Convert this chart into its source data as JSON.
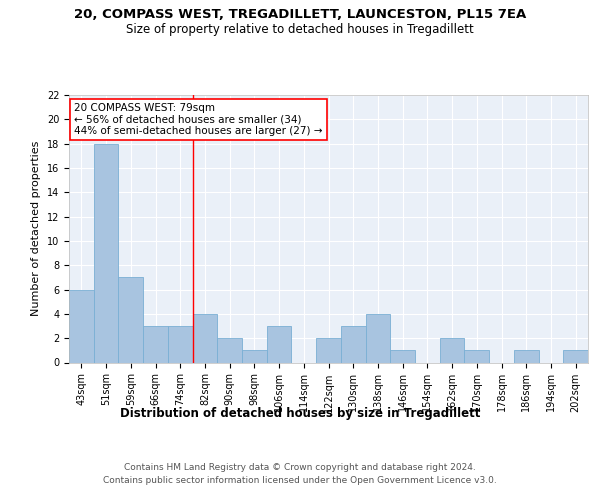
{
  "title": "20, COMPASS WEST, TREGADILLETT, LAUNCESTON, PL15 7EA",
  "subtitle": "Size of property relative to detached houses in Tregadillett",
  "xlabel": "Distribution of detached houses by size in Tregadillett",
  "ylabel": "Number of detached properties",
  "bins": [
    "43sqm",
    "51sqm",
    "59sqm",
    "66sqm",
    "74sqm",
    "82sqm",
    "90sqm",
    "98sqm",
    "106sqm",
    "114sqm",
    "122sqm",
    "130sqm",
    "138sqm",
    "146sqm",
    "154sqm",
    "162sqm",
    "170sqm",
    "178sqm",
    "186sqm",
    "194sqm",
    "202sqm"
  ],
  "values": [
    6,
    18,
    7,
    3,
    3,
    4,
    2,
    1,
    3,
    0,
    2,
    3,
    4,
    1,
    0,
    2,
    1,
    0,
    1,
    0,
    1
  ],
  "bar_color": "#a8c4e0",
  "bar_edge_color": "#7aafd4",
  "bg_color": "#eaf0f8",
  "annotation_text": "20 COMPASS WEST: 79sqm\n← 56% of detached houses are smaller (34)\n44% of semi-detached houses are larger (27) →",
  "annotation_box_color": "white",
  "annotation_box_edgecolor": "red",
  "vline_x_index": 4.5,
  "vline_color": "red",
  "ylim": [
    0,
    22
  ],
  "yticks": [
    0,
    2,
    4,
    6,
    8,
    10,
    12,
    14,
    16,
    18,
    20,
    22
  ],
  "footer_line1": "Contains HM Land Registry data © Crown copyright and database right 2024.",
  "footer_line2": "Contains public sector information licensed under the Open Government Licence v3.0.",
  "title_fontsize": 9.5,
  "subtitle_fontsize": 8.5,
  "xlabel_fontsize": 8.5,
  "ylabel_fontsize": 8,
  "annotation_fontsize": 7.5,
  "footer_fontsize": 6.5,
  "tick_fontsize": 7
}
